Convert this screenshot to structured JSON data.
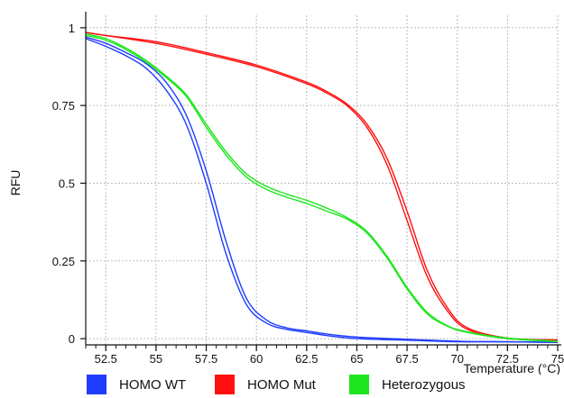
{
  "chart_data": {
    "type": "line",
    "title": "",
    "xlabel": "Temperature (°C)",
    "ylabel": "RFU",
    "xlim": [
      51.5,
      75
    ],
    "ylim": [
      -0.02,
      1.04
    ],
    "x_ticks": [
      52.5,
      55,
      57.5,
      60,
      62.5,
      65,
      67.5,
      70,
      72.5,
      75
    ],
    "x_tick_labels": [
      "52.5",
      "55",
      "57.5",
      "60",
      "62.5",
      "65",
      "67.5",
      "70",
      "72.5",
      "75"
    ],
    "y_ticks": [
      0,
      0.25,
      0.5,
      0.75,
      1
    ],
    "y_tick_labels": [
      "0",
      "0.25",
      "0.5",
      "0.75",
      "1"
    ],
    "grid": true,
    "legend_position": "bottom",
    "series": [
      {
        "name": "HOMO WT",
        "color": "#1f3cff",
        "curves": [
          {
            "x": [
              51.5,
              52.5,
              53.5,
              54.5,
              55.5,
              56.5,
              57.5,
              58.5,
              59.5,
              60.5,
              61.5,
              62.5,
              63.5,
              65,
              67.5,
              70,
              72.5,
              75
            ],
            "y": [
              0.965,
              0.94,
              0.91,
              0.87,
              0.8,
              0.69,
              0.5,
              0.27,
              0.11,
              0.05,
              0.03,
              0.02,
              0.01,
              0.0,
              -0.005,
              -0.01,
              -0.01,
              -0.012
            ]
          },
          {
            "x": [
              51.5,
              52.5,
              53.5,
              54.5,
              55.5,
              56.5,
              57.5,
              58.5,
              59.5,
              60.5,
              61.5,
              62.5,
              63.5,
              65,
              67.5,
              70,
              72.5,
              75
            ],
            "y": [
              0.97,
              0.95,
              0.92,
              0.885,
              0.825,
              0.72,
              0.54,
              0.31,
              0.13,
              0.06,
              0.035,
              0.025,
              0.015,
              0.005,
              -0.002,
              -0.008,
              -0.01,
              -0.012
            ]
          }
        ]
      },
      {
        "name": "HOMO Mut",
        "color": "#ff1010",
        "curves": [
          {
            "x": [
              51.5,
              52.5,
              55,
              57.5,
              60,
              62.5,
              63.5,
              64.5,
              65.5,
              66.5,
              67.5,
              68.5,
              69.5,
              70.5,
              72.5,
              75
            ],
            "y": [
              0.985,
              0.975,
              0.95,
              0.915,
              0.875,
              0.82,
              0.79,
              0.75,
              0.68,
              0.56,
              0.38,
              0.2,
              0.09,
              0.03,
              0.0,
              -0.005
            ]
          },
          {
            "x": [
              51.5,
              52.5,
              55,
              57.5,
              60,
              62.5,
              63.5,
              64.5,
              65.5,
              66.5,
              67.5,
              68.5,
              69.5,
              70.5,
              72.5,
              75
            ],
            "y": [
              0.985,
              0.975,
              0.955,
              0.92,
              0.88,
              0.825,
              0.795,
              0.755,
              0.69,
              0.58,
              0.41,
              0.22,
              0.1,
              0.035,
              0.002,
              -0.004
            ]
          }
        ]
      },
      {
        "name": "Heterozygous",
        "color": "#1ee61e",
        "curves": [
          {
            "x": [
              51.5,
              52.5,
              53.5,
              54.5,
              55.5,
              56.5,
              57.5,
              58.5,
              59.5,
              60.5,
              61.5,
              62.5,
              63.5,
              64.5,
              65.5,
              66.5,
              67.5,
              68.5,
              69.5,
              70.5,
              72.5,
              75
            ],
            "y": [
              0.975,
              0.96,
              0.93,
              0.89,
              0.84,
              0.78,
              0.68,
              0.59,
              0.52,
              0.48,
              0.455,
              0.435,
              0.41,
              0.385,
              0.34,
              0.26,
              0.16,
              0.08,
              0.04,
              0.02,
              0.0,
              -0.01
            ]
          },
          {
            "x": [
              51.5,
              52.5,
              53.5,
              54.5,
              55.5,
              56.5,
              57.5,
              58.5,
              59.5,
              60.5,
              61.5,
              62.5,
              63.5,
              64.5,
              65.5,
              66.5,
              67.5,
              68.5,
              69.5,
              70.5,
              72.5,
              75
            ],
            "y": [
              0.98,
              0.965,
              0.935,
              0.895,
              0.845,
              0.785,
              0.69,
              0.6,
              0.53,
              0.49,
              0.465,
              0.445,
              0.42,
              0.39,
              0.345,
              0.265,
              0.165,
              0.085,
              0.042,
              0.022,
              0.002,
              -0.008
            ]
          }
        ]
      }
    ]
  }
}
